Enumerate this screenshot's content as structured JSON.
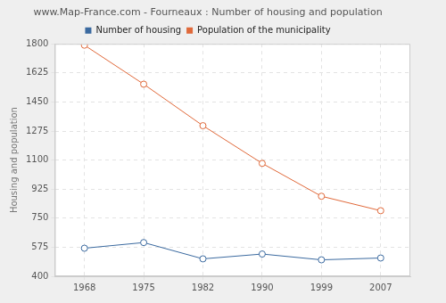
{
  "chart_data": {
    "type": "line",
    "title": "www.Map-France.com - Fourneaux : Number of housing and population",
    "y_label": "Housing and population",
    "categories": [
      "1968",
      "1975",
      "1982",
      "1990",
      "1999",
      "2007"
    ],
    "series": [
      {
        "name": "Number of housing",
        "color": "#3b6aa0",
        "marker": "circle",
        "line_style": "solid",
        "values": [
          569,
          603,
          505,
          534,
          499,
          510
        ]
      },
      {
        "name": "Population of the municipality",
        "color": "#e0693a",
        "marker": "circle",
        "line_style": "solid",
        "values": [
          1792,
          1557,
          1307,
          1080,
          882,
          795
        ]
      }
    ],
    "ylim": [
      400,
      1800
    ],
    "yticks": [
      400,
      575,
      750,
      925,
      1100,
      1275,
      1450,
      1625,
      1800
    ],
    "grid": true,
    "legend": "top"
  }
}
